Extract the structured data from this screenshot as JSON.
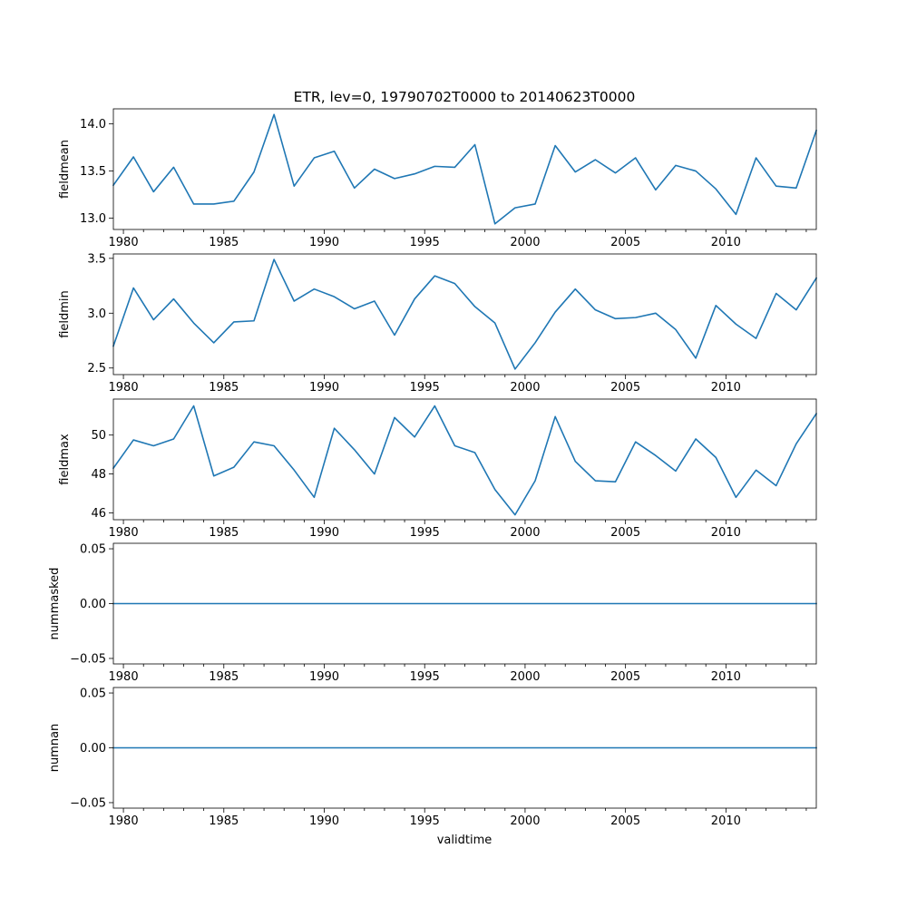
{
  "figure": {
    "title": "ETR, lev=0, 19790702T0000 to 20140623T0000",
    "xlabel": "validtime"
  },
  "chart_data": [
    {
      "type": "line",
      "title": "ETR, lev=0, 19790702T0000 to 20140623T0000",
      "xlabel": "",
      "ylabel": "fieldmean",
      "xlim": [
        1979.5,
        2014.5
      ],
      "ylim": [
        12.88,
        14.16
      ],
      "x_ticks": [
        1980,
        1985,
        1990,
        1995,
        2000,
        2005,
        2010
      ],
      "y_ticks": [
        13.0,
        13.5,
        14.0
      ],
      "y_tick_labels": [
        "13.0",
        "13.5",
        "14.0"
      ],
      "color": "#1f77b4",
      "grid": false,
      "x": [
        1979.5,
        1980.5,
        1981.5,
        1982.5,
        1983.5,
        1984.5,
        1985.5,
        1986.5,
        1987.5,
        1988.5,
        1989.5,
        1990.5,
        1991.5,
        1992.5,
        1993.5,
        1994.5,
        1995.5,
        1996.5,
        1997.5,
        1998.5,
        1999.5,
        2000.5,
        2001.5,
        2002.5,
        2003.5,
        2004.5,
        2005.5,
        2006.5,
        2007.5,
        2008.5,
        2009.5,
        2010.5,
        2011.5,
        2012.5,
        2013.5,
        2014.5
      ],
      "values": [
        13.35,
        13.65,
        13.28,
        13.54,
        13.15,
        13.15,
        13.18,
        13.49,
        14.1,
        13.34,
        13.64,
        13.71,
        13.32,
        13.52,
        13.42,
        13.47,
        13.55,
        13.54,
        13.78,
        12.94,
        13.11,
        13.15,
        13.77,
        13.49,
        13.62,
        13.48,
        13.64,
        13.3,
        13.56,
        13.5,
        13.31,
        13.04,
        13.64,
        13.34,
        13.32,
        13.93
      ]
    },
    {
      "type": "line",
      "xlabel": "",
      "ylabel": "fieldmin",
      "xlim": [
        1979.5,
        2014.5
      ],
      "ylim": [
        2.44,
        3.54
      ],
      "x_ticks": [
        1980,
        1985,
        1990,
        1995,
        2000,
        2005,
        2010
      ],
      "y_ticks": [
        2.5,
        3.0,
        3.5
      ],
      "y_tick_labels": [
        "2.5",
        "3.0",
        "3.5"
      ],
      "color": "#1f77b4",
      "grid": false,
      "x": [
        1979.5,
        1980.5,
        1981.5,
        1982.5,
        1983.5,
        1984.5,
        1985.5,
        1986.5,
        1987.5,
        1988.5,
        1989.5,
        1990.5,
        1991.5,
        1992.5,
        1993.5,
        1994.5,
        1995.5,
        1996.5,
        1997.5,
        1998.5,
        1999.5,
        2000.5,
        2001.5,
        2002.5,
        2003.5,
        2004.5,
        2005.5,
        2006.5,
        2007.5,
        2008.5,
        2009.5,
        2010.5,
        2011.5,
        2012.5,
        2013.5,
        2014.5
      ],
      "values": [
        2.7,
        3.23,
        2.94,
        3.13,
        2.91,
        2.73,
        2.92,
        2.93,
        3.49,
        3.11,
        3.22,
        3.15,
        3.04,
        3.11,
        2.8,
        3.13,
        3.34,
        3.27,
        3.06,
        2.91,
        2.49,
        2.73,
        3.01,
        3.22,
        3.03,
        2.95,
        2.96,
        3.0,
        2.85,
        2.59,
        3.07,
        2.9,
        2.77,
        3.18,
        3.03,
        3.32
      ]
    },
    {
      "type": "line",
      "xlabel": "",
      "ylabel": "fieldmax",
      "xlim": [
        1979.5,
        2014.5
      ],
      "ylim": [
        45.65,
        51.85
      ],
      "x_ticks": [
        1980,
        1985,
        1990,
        1995,
        2000,
        2005,
        2010
      ],
      "y_ticks": [
        46,
        48,
        50
      ],
      "y_tick_labels": [
        "46",
        "48",
        "50"
      ],
      "color": "#1f77b4",
      "grid": false,
      "x": [
        1979.5,
        1980.5,
        1981.5,
        1982.5,
        1983.5,
        1984.5,
        1985.5,
        1986.5,
        1987.5,
        1988.5,
        1989.5,
        1990.5,
        1991.5,
        1992.5,
        1993.5,
        1994.5,
        1995.5,
        1996.5,
        1997.5,
        1998.5,
        1999.5,
        2000.5,
        2001.5,
        2002.5,
        2003.5,
        2004.5,
        2005.5,
        2006.5,
        2007.5,
        2008.5,
        2009.5,
        2010.5,
        2011.5,
        2012.5,
        2013.5,
        2014.5
      ],
      "values": [
        48.3,
        49.75,
        49.45,
        49.8,
        51.5,
        47.9,
        48.35,
        49.65,
        49.45,
        48.2,
        46.8,
        50.35,
        49.25,
        48.0,
        50.9,
        49.9,
        51.5,
        49.45,
        49.1,
        47.2,
        45.9,
        47.65,
        50.95,
        48.65,
        47.65,
        47.6,
        49.65,
        48.95,
        48.15,
        49.8,
        48.85,
        46.8,
        48.2,
        47.4,
        49.55,
        51.1
      ]
    },
    {
      "type": "line",
      "xlabel": "",
      "ylabel": "nummasked",
      "xlim": [
        1979.5,
        2014.5
      ],
      "ylim": [
        -0.055,
        0.055
      ],
      "x_ticks": [
        1980,
        1985,
        1990,
        1995,
        2000,
        2005,
        2010
      ],
      "y_ticks": [
        -0.05,
        0.0,
        0.05
      ],
      "y_tick_labels": [
        "−0.05",
        "0.00",
        "0.05"
      ],
      "color": "#1f77b4",
      "grid": false,
      "x": [
        1979.5,
        2014.5
      ],
      "values": [
        0,
        0
      ]
    },
    {
      "type": "line",
      "xlabel": "validtime",
      "ylabel": "numnan",
      "xlim": [
        1979.5,
        2014.5
      ],
      "ylim": [
        -0.055,
        0.055
      ],
      "x_ticks": [
        1980,
        1985,
        1990,
        1995,
        2000,
        2005,
        2010
      ],
      "y_ticks": [
        -0.05,
        0.0,
        0.05
      ],
      "y_tick_labels": [
        "−0.05",
        "0.00",
        "0.05"
      ],
      "color": "#1f77b4",
      "grid": false,
      "x": [
        1979.5,
        2014.5
      ],
      "values": [
        0,
        0
      ]
    }
  ]
}
